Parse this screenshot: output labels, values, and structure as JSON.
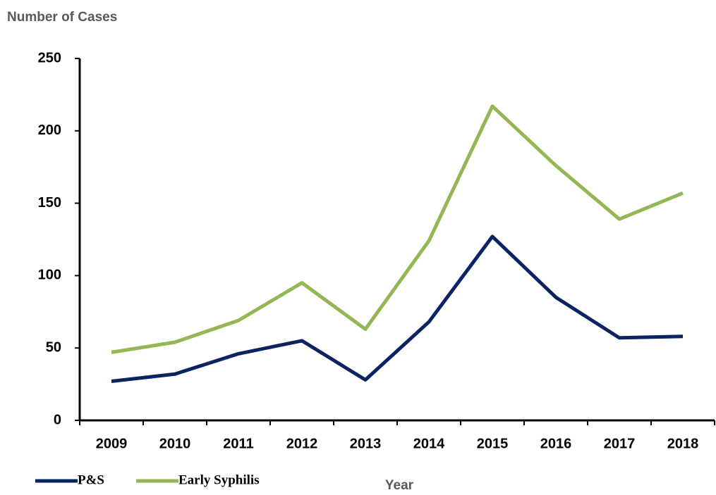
{
  "chart_data": {
    "type": "line",
    "y_axis_label": "Number of Cases",
    "x_axis_label": "Year",
    "categories": [
      "2009",
      "2010",
      "2011",
      "2012",
      "2013",
      "2014",
      "2015",
      "2016",
      "2017",
      "2018"
    ],
    "series": [
      {
        "name": "P&S",
        "color": "#0b2360",
        "values": [
          27,
          32,
          46,
          55,
          28,
          68,
          127,
          85,
          57,
          58
        ]
      },
      {
        "name": "Early Syphilis",
        "color": "#93b755",
        "values": [
          47,
          54,
          69,
          95,
          63,
          124,
          217,
          176,
          139,
          157
        ]
      }
    ],
    "ylim": [
      0,
      250
    ],
    "yticks": [
      0,
      50,
      100,
      150,
      200,
      250
    ],
    "grid": false,
    "legend": "bottom-left"
  }
}
